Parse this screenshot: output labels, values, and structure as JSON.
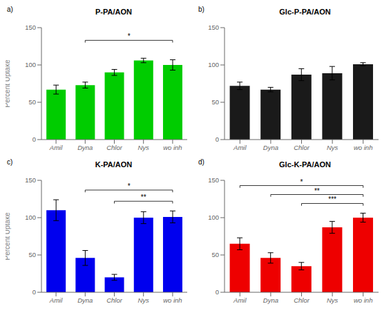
{
  "chart_data": [
    {
      "type": "bar",
      "panel_label": "a)",
      "title": "P-PA/AON",
      "ylabel": "Percent Uptake",
      "color": "#00cc00",
      "categories": [
        "Amil",
        "Dyna",
        "Chlor",
        "Nys",
        "wo inh"
      ],
      "values": [
        67,
        73,
        90,
        106,
        100
      ],
      "errors": [
        6,
        4,
        4,
        3,
        7
      ],
      "ylim": [
        0,
        150
      ],
      "yticks": [
        0,
        50,
        100,
        150
      ],
      "grid": false,
      "annotations": [
        {
          "text": "*",
          "x1": "Dyna",
          "x2": "wo inh",
          "y": 133,
          "bracket_height": 3
        }
      ]
    },
    {
      "type": "bar",
      "panel_label": "b)",
      "title": "Glc-P-PA/AON",
      "color": "#1a1a1a",
      "categories": [
        "Amil",
        "Dyna",
        "Chlor",
        "Nys",
        "wo inh"
      ],
      "values": [
        72,
        67,
        87,
        89,
        101
      ],
      "errors": [
        5,
        3,
        8,
        9,
        2
      ],
      "ylim": [
        0,
        150
      ],
      "yticks": [
        0,
        50,
        100,
        150
      ],
      "grid": false,
      "annotations": []
    },
    {
      "type": "bar",
      "panel_label": "c)",
      "title": "K-PA/AON",
      "ylabel": "Percent Uptake",
      "color": "#0000ee",
      "categories": [
        "Amil",
        "Dyna",
        "Chlor",
        "Nys",
        "wo inh"
      ],
      "values": [
        110,
        46,
        20,
        100,
        101
      ],
      "errors": [
        14,
        10,
        4,
        8,
        8
      ],
      "ylim": [
        0,
        150
      ],
      "yticks": [
        0,
        50,
        100,
        150
      ],
      "grid": false,
      "annotations": [
        {
          "text": "*",
          "x1": "Dyna",
          "x2": "wo inh",
          "y": 137,
          "bracket_height": 3
        },
        {
          "text": "**",
          "x1": "Chlor",
          "x2": "wo inh",
          "y": 122,
          "bracket_height": 3
        }
      ]
    },
    {
      "type": "bar",
      "panel_label": "d)",
      "title": "Glc-K-PA/AON",
      "color": "#ee0000",
      "categories": [
        "Amil",
        "Dyna",
        "Chlor",
        "Nys",
        "wo inh"
      ],
      "values": [
        65,
        46,
        35,
        87,
        100
      ],
      "errors": [
        8,
        7,
        5,
        8,
        6
      ],
      "ylim": [
        0,
        150
      ],
      "yticks": [
        0,
        50,
        100,
        150
      ],
      "grid": false,
      "annotations": [
        {
          "text": "*",
          "x1": "Amil",
          "x2": "wo inh",
          "y": 143,
          "bracket_height": 3
        },
        {
          "text": "**",
          "x1": "Dyna",
          "x2": "wo inh",
          "y": 131,
          "bracket_height": 3
        },
        {
          "text": "***",
          "x1": "Chlor",
          "x2": "wo inh",
          "y": 119,
          "bracket_height": 3
        }
      ]
    }
  ]
}
